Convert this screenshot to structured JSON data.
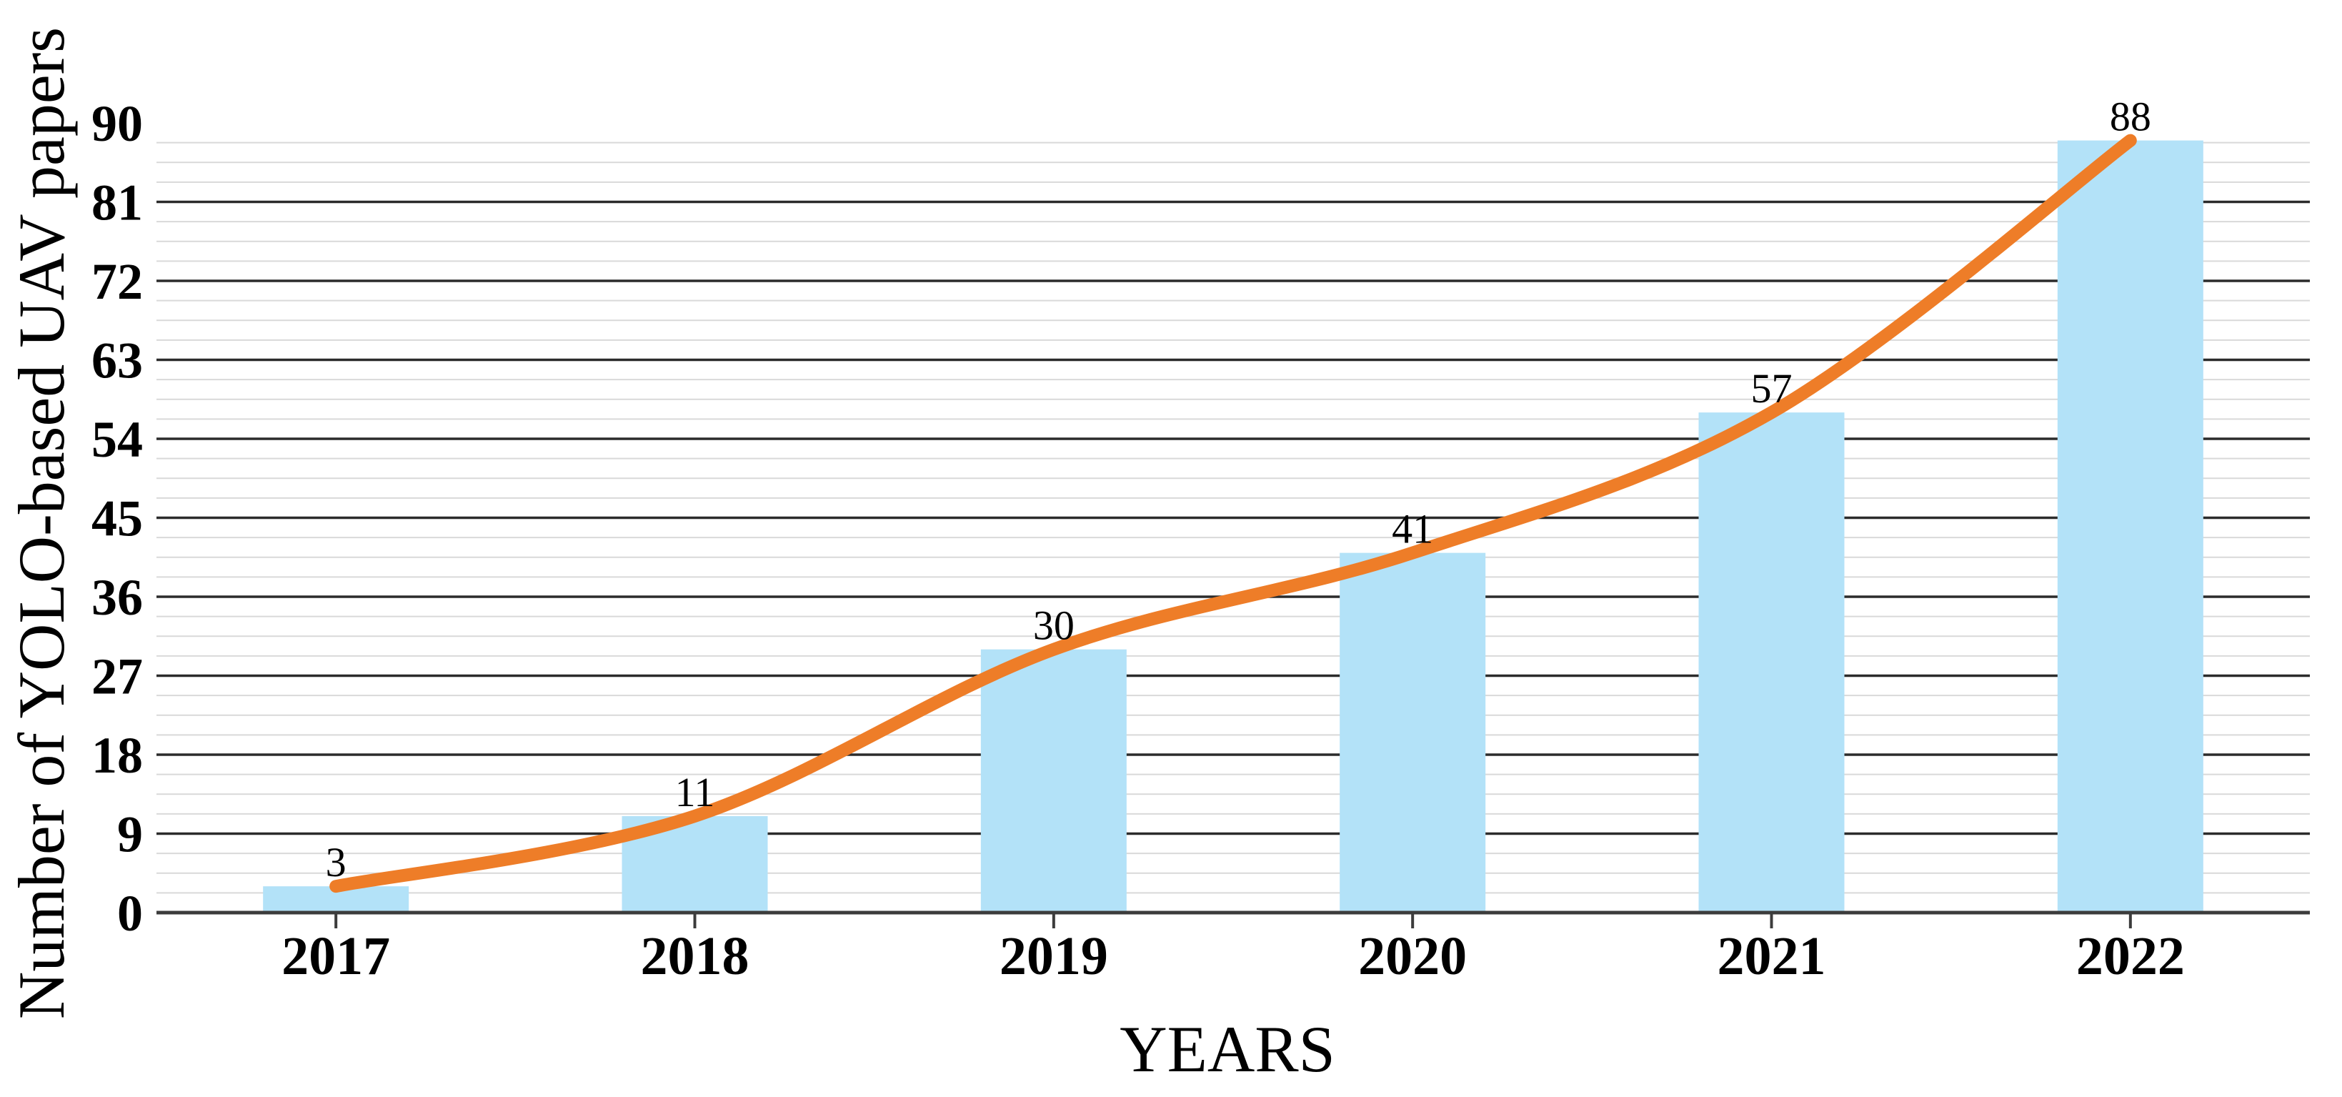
{
  "chart_data": {
    "type": "bar",
    "title": "",
    "xlabel": "YEARS",
    "ylabel": "Number of YOLO-based UAV papers",
    "categories": [
      "2017",
      "2018",
      "2019",
      "2020",
      "2021",
      "2022"
    ],
    "series": [
      {
        "name": "papers-bars",
        "type": "bar",
        "values": [
          3,
          11,
          30,
          41,
          57,
          88
        ],
        "color": "#B3E2F8"
      },
      {
        "name": "papers-trend",
        "type": "line",
        "smooth": true,
        "values": [
          3,
          11,
          30,
          41,
          57,
          88
        ],
        "color": "#EE7D28"
      }
    ],
    "data_labels": [
      "3",
      "11",
      "30",
      "41",
      "57",
      "88"
    ],
    "ylim": [
      0,
      90
    ],
    "yticks": [
      0,
      9,
      18,
      27,
      36,
      45,
      54,
      63,
      72,
      81,
      90
    ],
    "y_major_unit": 9,
    "y_minor_unit": 2.25,
    "grid": {
      "major_on": true,
      "minor_on": true,
      "major_color": "#2B2B2B",
      "minor_color": "#D9D9D9",
      "axis_color": "#3C3C3C"
    },
    "legend": "none",
    "text_color": "#000000",
    "background": "#FFFFFF"
  }
}
